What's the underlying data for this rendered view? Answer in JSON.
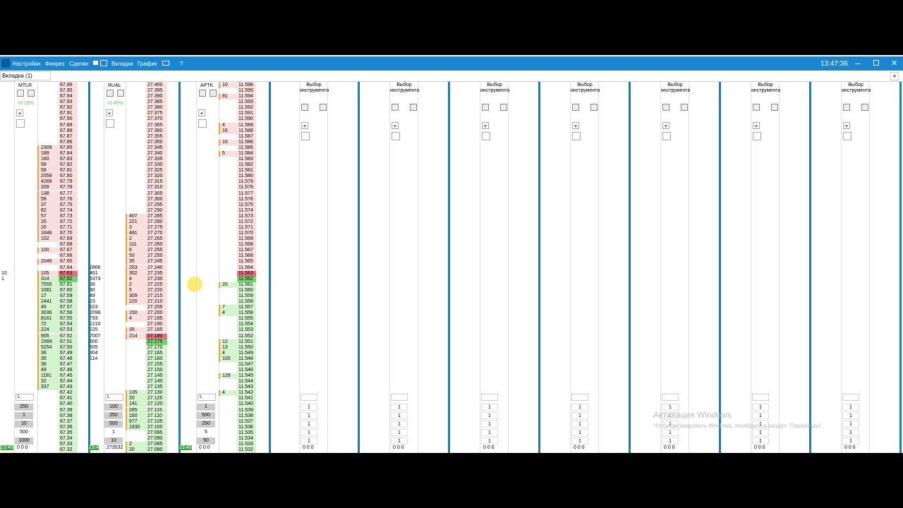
{
  "toolbar": {
    "menu": [
      "Настройки",
      "Финрез",
      "Сделки",
      "Вкладки",
      "График"
    ],
    "help": "?",
    "time": "13:47:36"
  },
  "tab": "Вкладка (1)",
  "colors": {
    "ask": "#fbdede",
    "bid": "#d6f3d0",
    "best_ask": "#e46f7c",
    "best_bid": "#6fd66a",
    "separator": "#1b7cc0"
  },
  "panels": [
    {
      "ticker": "MTLR",
      "change": "+0.19%",
      "lot_mode": "L",
      "lots": [
        "250",
        "1",
        "10",
        "500",
        "1000"
      ],
      "footer": "0 0 0",
      "clock": "13:45",
      "side_labels": [
        "10",
        "1"
      ],
      "trades": [],
      "asks": {
        "prices": [
          "67.96",
          "67.95",
          "67.94",
          "67.93",
          "67.92",
          "67.91",
          "67.90",
          "67.89",
          "67.88",
          "67.87",
          "67.86",
          "67.85",
          "67.84",
          "67.83",
          "67.82",
          "67.81",
          "67.80",
          "67.79",
          "67.78",
          "67.77",
          "67.76",
          "67.75",
          "67.74",
          "67.73",
          "67.72",
          "67.71",
          "67.70",
          "67.69",
          "67.68",
          "67.67",
          "67.66",
          "67.65",
          "67.64",
          "67.63"
        ],
        "volumes": [
          null,
          null,
          null,
          null,
          null,
          null,
          null,
          null,
          null,
          null,
          null,
          "2309",
          "189",
          "160",
          "58",
          "58",
          "2059",
          "4269",
          "209",
          "138",
          "58",
          "37",
          "82",
          "57",
          "20",
          "20",
          "1646",
          "102",
          null,
          "100",
          null,
          "2045",
          null,
          "105"
        ]
      },
      "bids": {
        "prices": [
          "67.62",
          "67.61",
          "67.60",
          "67.59",
          "67.58",
          "67.57",
          "67.56",
          "67.55",
          "67.54",
          "67.53",
          "67.52",
          "67.51",
          "67.50",
          "67.49",
          "67.48",
          "67.47",
          "67.46",
          "67.45",
          "67.44",
          "67.43",
          "67.42",
          "67.41",
          "67.40",
          "67.39",
          "67.38",
          "67.37",
          "67.36",
          "67.35",
          "67.34",
          "67.33",
          "67.32"
        ],
        "volumes": [
          "314",
          "7555",
          "1081",
          "17",
          "2441",
          "45",
          "3036",
          "8161",
          "72",
          "224",
          "905",
          "1569",
          "5254",
          "36",
          "35",
          "36",
          "49",
          "1181",
          "32",
          "337",
          null,
          null,
          null,
          null,
          null,
          null,
          null,
          null,
          null,
          null,
          null
        ]
      }
    },
    {
      "ticker": "RUAL",
      "change": "+2.40%",
      "lot_mode": "L",
      "lots": [
        "100",
        "250",
        "500",
        "1",
        "10"
      ],
      "footer": "273532",
      "clock": "13:4",
      "side_labels": [],
      "trades": [
        "2866",
        "461",
        "5373",
        "36",
        "90",
        "49",
        "23",
        "623",
        "2098",
        "793",
        "1210",
        "225",
        "7007",
        "600",
        "605",
        "304",
        "114"
      ],
      "asks": {
        "prices": [
          "27.400",
          "27.395",
          "27.390",
          "27.385",
          "27.380",
          "27.375",
          "27.370",
          "27.365",
          "27.360",
          "27.355",
          "27.350",
          "27.345",
          "27.340",
          "27.335",
          "27.330",
          "27.325",
          "27.320",
          "27.315",
          "27.310",
          "27.305",
          "27.300",
          "27.295",
          "27.290",
          "27.285",
          "27.280",
          "27.275",
          "27.270",
          "27.265",
          "27.260",
          "27.255",
          "27.250",
          "27.245",
          "27.240",
          "27.235",
          "27.230",
          "27.225",
          "27.220",
          "27.215",
          "27.210",
          "27.205",
          "27.200",
          "27.195",
          "27.190",
          "27.185",
          "27.180"
        ],
        "volumes": [
          null,
          null,
          null,
          null,
          null,
          null,
          null,
          null,
          null,
          null,
          null,
          null,
          null,
          null,
          null,
          null,
          null,
          null,
          null,
          null,
          null,
          null,
          null,
          "407",
          "221",
          "3",
          "481",
          "2",
          "111",
          "6",
          "50",
          "35",
          "253",
          "302",
          "4",
          "2",
          "5",
          "309",
          "220",
          null,
          "150",
          "4",
          null,
          "35",
          "214"
        ]
      },
      "bids": {
        "prices": [
          "27.175",
          "27.170",
          "27.165",
          "27.160",
          "27.155",
          "27.150",
          "27.145",
          "27.140",
          "27.135",
          "27.130",
          "27.125",
          "27.120",
          "27.115",
          "27.110",
          "27.105",
          "27.100",
          "27.095",
          "27.090",
          "27.085",
          "27.080"
        ],
        "volumes": [
          null,
          null,
          null,
          null,
          null,
          null,
          null,
          null,
          null,
          "135",
          "20",
          "141",
          "285",
          "160",
          "677",
          "1930",
          null,
          null,
          "2",
          "20"
        ]
      }
    },
    {
      "ticker": "APTK",
      "change": "",
      "lot_mode": "L",
      "lots": [
        "1",
        "500",
        "250",
        "5",
        "50"
      ],
      "footer": "0 0 0",
      "clock": "13:45",
      "side_labels": [],
      "trades": [],
      "asks": {
        "prices": [
          "11.596",
          "11.595",
          "11.594",
          "11.593",
          "11.592",
          "11.591",
          "11.590",
          "11.589",
          "11.588",
          "11.587",
          "11.586",
          "11.585",
          "11.584",
          "11.583",
          "11.582",
          "11.581",
          "11.580",
          "11.579",
          "11.578",
          "11.577",
          "11.576",
          "11.575",
          "11.574",
          "11.573",
          "11.572",
          "11.571",
          "11.570",
          "11.569",
          "11.568",
          "11.567",
          "11.566",
          "11.565",
          "11.564",
          "11.563"
        ],
        "volumes": [
          "10",
          null,
          "81",
          null,
          null,
          null,
          null,
          "4",
          "16",
          null,
          "10",
          null,
          "5",
          null,
          null,
          null,
          null,
          null,
          null,
          null,
          null,
          null,
          null,
          null,
          null,
          null,
          null,
          null,
          null,
          null,
          null,
          null,
          null,
          null
        ]
      },
      "bids": {
        "prices": [
          "11.562",
          "11.561",
          "11.560",
          "11.559",
          "11.558",
          "11.557",
          "11.556",
          "11.555",
          "11.554",
          "11.553",
          "11.552",
          "11.551",
          "11.550",
          "11.549",
          "11.548",
          "11.547",
          "11.546",
          "11.545",
          "11.544",
          "11.543",
          "11.542",
          "11.541",
          "11.540",
          "11.539",
          "11.538",
          "11.537",
          "11.536",
          "11.535",
          "11.534",
          "11.533",
          "11.532"
        ],
        "volumes": [
          null,
          "20",
          null,
          null,
          null,
          "7",
          "4",
          null,
          null,
          null,
          null,
          "12",
          "13",
          "4",
          "100",
          null,
          null,
          "128",
          null,
          null,
          "4",
          null,
          null,
          null,
          null,
          null,
          null,
          null,
          null,
          null,
          null
        ]
      }
    }
  ],
  "empty_panels": [
    {
      "title": "Выбор инструмента",
      "lots": [
        "1",
        "1",
        "1",
        "1",
        "1"
      ],
      "footer": "0 0 0"
    },
    {
      "title": "Выбор инструмента",
      "lots": [
        "1",
        "1",
        "1",
        "1",
        "1"
      ],
      "footer": "0 0 0"
    },
    {
      "title": "Выбор инструмента",
      "lots": [
        "1",
        "1",
        "1",
        "1",
        "1"
      ],
      "footer": "0 0 0"
    },
    {
      "title": "Выбор инструмента",
      "lots": [
        "1",
        "1",
        "1",
        "1",
        "1"
      ],
      "footer": "0 0 0"
    },
    {
      "title": "Выбор инструмента",
      "lots": [
        "1",
        "1",
        "1",
        "1",
        "1"
      ],
      "footer": "0 0 0"
    },
    {
      "title": "Выбор инструмента",
      "lots": [
        "1",
        "1",
        "1",
        "1",
        "1"
      ],
      "footer": "0 0 0"
    },
    {
      "title": "Выбор инструмента",
      "lots": [
        "1",
        "1",
        "1",
        "1",
        "1"
      ],
      "footer": "0 0 0"
    }
  ],
  "watermark": {
    "title": "Активация Windows",
    "text": "Чтобы активировать Windows, перейдите в раздел \"Параметры\"."
  }
}
